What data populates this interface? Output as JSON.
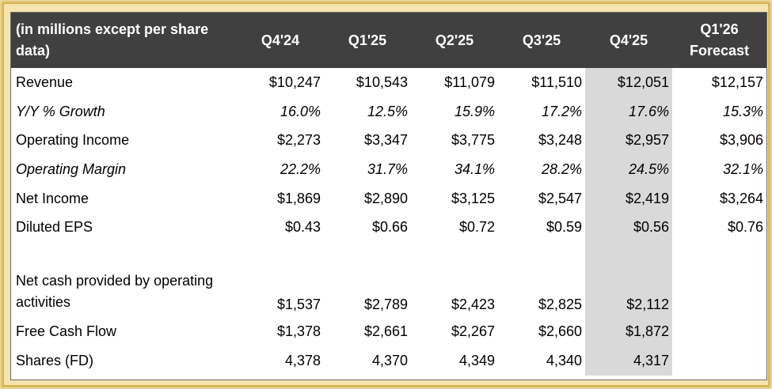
{
  "header": {
    "label": "(in millions except per share data)",
    "periods": [
      "Q4'24",
      "Q1'25",
      "Q2'25",
      "Q3'25",
      "Q4'25",
      "Q1'26 Forecast"
    ]
  },
  "rows": [
    {
      "label": "Revenue",
      "italic": false,
      "values": [
        "$10,247",
        "$10,543",
        "$11,079",
        "$11,510",
        "$12,051",
        "$12,157"
      ]
    },
    {
      "label": "Y/Y % Growth",
      "italic": true,
      "values": [
        "16.0%",
        "12.5%",
        "15.9%",
        "17.2%",
        "17.6%",
        "15.3%"
      ]
    },
    {
      "label": "Operating Income",
      "italic": false,
      "values": [
        "$2,273",
        "$3,347",
        "$3,775",
        "$3,248",
        "$2,957",
        "$3,906"
      ]
    },
    {
      "label": "Operating Margin",
      "italic": true,
      "values": [
        "22.2%",
        "31.7%",
        "34.1%",
        "28.2%",
        "24.5%",
        "32.1%"
      ]
    },
    {
      "label": "Net Income",
      "italic": false,
      "values": [
        "$1,869",
        "$2,890",
        "$3,125",
        "$2,547",
        "$2,419",
        "$3,264"
      ]
    },
    {
      "label": "Diluted EPS",
      "italic": false,
      "values": [
        "$0.43",
        "$0.66",
        "$0.72",
        "$0.59",
        "$0.56",
        "$0.76"
      ]
    },
    {
      "label": "Net cash provided by operating activities",
      "italic": false,
      "values": [
        "$1,537",
        "$2,789",
        "$2,423",
        "$2,825",
        "$2,112",
        ""
      ]
    },
    {
      "label": "Free Cash Flow",
      "italic": false,
      "values": [
        "$1,378",
        "$2,661",
        "$2,267",
        "$2,660",
        "$1,872",
        ""
      ]
    },
    {
      "label": "Shares (FD)",
      "italic": false,
      "values": [
        "4,378",
        "4,370",
        "4,349",
        "4,340",
        "4,317",
        ""
      ]
    }
  ],
  "colors": {
    "header_bg": "#404040",
    "header_text": "#ffffff",
    "highlight_column": "#d9d9d9",
    "frame_border": "#d8b54e"
  }
}
